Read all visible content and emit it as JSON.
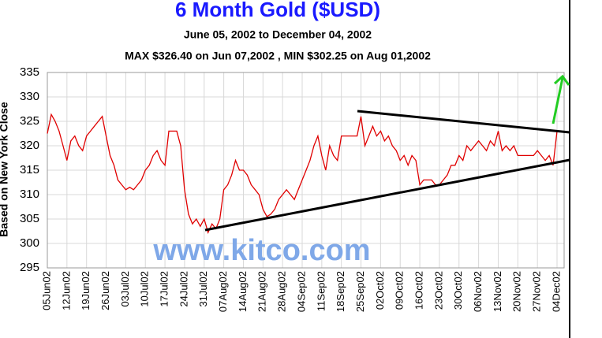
{
  "chart_data": {
    "type": "line",
    "title": "6 Month Gold ($USD)",
    "subtitle": "June 05, 2002 to December 04, 2002",
    "annotation": "MAX $326.40 on Jun 07,2002 , MIN $302.25 on Aug 01,2002",
    "watermark": "www.kitco.com",
    "y_label": "Based on New York Close",
    "categories": [
      "05Jun02",
      null,
      null,
      null,
      null,
      "12Jun02",
      null,
      null,
      null,
      null,
      "19Jun02",
      null,
      null,
      null,
      null,
      "26Jun02",
      null,
      null,
      null,
      null,
      "03Jul02",
      null,
      null,
      null,
      null,
      "10Jul02",
      null,
      null,
      null,
      null,
      "17Jul02",
      null,
      null,
      null,
      null,
      "24Jul02",
      null,
      null,
      null,
      null,
      "31Jul02",
      null,
      null,
      null,
      null,
      "07Aug02",
      null,
      null,
      null,
      null,
      "14Aug02",
      null,
      null,
      null,
      null,
      "21Aug02",
      null,
      null,
      null,
      null,
      "28Aug02",
      null,
      null,
      null,
      null,
      "04Sep02",
      null,
      null,
      null,
      null,
      "11Sep02",
      null,
      null,
      null,
      null,
      "18Sep02",
      null,
      null,
      null,
      null,
      "25Sep02",
      null,
      null,
      null,
      null,
      "02Oct02",
      null,
      null,
      null,
      null,
      "09Oct02",
      null,
      null,
      null,
      null,
      "16Oct02",
      null,
      null,
      null,
      null,
      "23Oct02",
      null,
      null,
      null,
      null,
      "30Oct02",
      null,
      null,
      null,
      null,
      "06Nov02",
      null,
      null,
      null,
      null,
      "13Nov02",
      null,
      null,
      null,
      null,
      "20Nov02",
      null,
      null,
      null,
      null,
      "27Nov02",
      null,
      null,
      null,
      null,
      "04Dec02"
    ],
    "values": [
      322.5,
      326.4,
      325,
      323,
      320,
      317,
      321,
      322,
      320,
      319,
      322,
      323,
      324,
      325,
      326,
      322,
      318,
      316,
      313,
      312,
      311,
      311.5,
      311,
      312,
      313,
      315,
      316,
      318,
      319,
      317,
      316,
      323,
      323,
      323,
      320,
      311,
      306,
      304,
      305,
      303.5,
      305,
      302.25,
      304,
      303,
      305,
      311,
      312,
      314,
      317,
      315,
      315,
      314,
      312,
      311,
      310,
      307,
      305.5,
      306,
      307,
      309,
      310,
      311,
      310,
      309,
      311,
      313,
      315,
      317,
      320,
      322,
      318,
      315,
      320,
      318,
      317,
      322,
      322,
      322,
      322,
      322,
      326,
      320,
      322,
      324,
      322,
      323,
      321,
      322,
      320,
      319,
      317,
      318,
      316,
      318,
      317,
      312,
      313,
      313,
      313,
      312,
      312,
      313,
      314,
      316,
      316,
      318,
      317,
      320,
      319,
      320,
      321,
      320,
      319,
      321,
      320,
      323,
      319,
      320,
      319,
      320,
      318,
      318,
      318,
      318,
      318,
      319,
      318,
      317,
      318,
      316,
      323
    ],
    "color": "#e00000",
    "ylim": [
      295,
      335
    ],
    "yticks": [
      295,
      300,
      305,
      310,
      315,
      320,
      325,
      330,
      335
    ],
    "grid": true
  }
}
